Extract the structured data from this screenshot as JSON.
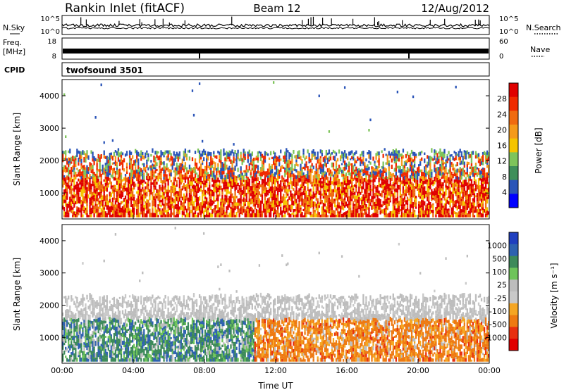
{
  "header": {
    "title": "Rankin Inlet (fitACF)",
    "beam": "Beam 12",
    "date": "12/Aug/2012"
  },
  "noise_panel": {
    "left_label": "N.Sky",
    "right_label": "N.Search",
    "left_ticks": [
      "10^5",
      "10^0"
    ],
    "right_ticks": [
      "10^5",
      "10^0"
    ]
  },
  "freq_panel": {
    "left_label_1": "Freq.",
    "left_label_2": "[MHz]",
    "right_label": "Nave",
    "left_ticks": [
      "18",
      "8"
    ],
    "right_ticks": [
      "60",
      "0"
    ]
  },
  "cpid_panel": {
    "label": "CPID",
    "value": "twofsound 3501"
  },
  "colors": {
    "power_scale": [
      "#0000ff",
      "#2b55b8",
      "#3f8f5a",
      "#7ec45b",
      "#f5c400",
      "#f59a1a",
      "#f06b10",
      "#f02a00",
      "#e00000"
    ],
    "velocity_scale": [
      "#1f3fbf",
      "#2e62b0",
      "#3d8a5a",
      "#6ec45a",
      "#bdbdbd",
      "#c9c9c9",
      "#f5a623",
      "#ee7a12",
      "#e83010",
      "#e00000"
    ]
  },
  "chart_data": [
    {
      "type": "heatmap",
      "name": "power",
      "xlabel": "",
      "ylabel": "Slant Range [km]",
      "x_ticks": [
        "00:00",
        "04:00",
        "08:00",
        "12:00",
        "16:00",
        "20:00",
        "00:00"
      ],
      "y_ticks": [
        1000,
        2000,
        3000,
        4000
      ],
      "ylim": [
        200,
        4500
      ],
      "colorbar": {
        "label": "Power [dB]",
        "ticks": [
          "4",
          "8",
          "12",
          "16",
          "20",
          "24",
          "28"
        ]
      }
    },
    {
      "type": "heatmap",
      "name": "velocity",
      "xlabel": "Time UT",
      "ylabel": "Slant Range [km]",
      "x_ticks": [
        "00:00",
        "04:00",
        "08:00",
        "12:00",
        "16:00",
        "20:00",
        "00:00"
      ],
      "y_ticks": [
        1000,
        2000,
        3000,
        4000
      ],
      "ylim": [
        200,
        4500
      ],
      "colorbar": {
        "label": "Velocity [m s⁻¹]",
        "ticks": [
          "1000",
          "500",
          "100",
          "25",
          "-25",
          "-100",
          "-500",
          "-1000"
        ]
      }
    }
  ]
}
